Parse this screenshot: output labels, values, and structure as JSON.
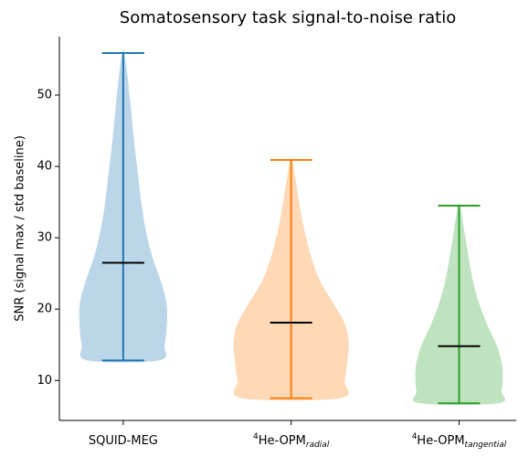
{
  "chart_data": {
    "type": "violin",
    "title": "Somatosensory task signal-to-noise ratio",
    "ylabel": "SNR (signal max / std baseline)",
    "categories": [
      {
        "text": "SQUID-MEG"
      },
      {
        "sup": "4",
        "text": "He-OPM",
        "sub": "radial"
      },
      {
        "sup": "4",
        "text": "He-OPM",
        "sub": "tangential"
      }
    ],
    "positions": [
      1,
      2,
      3
    ],
    "xlim": [
      0.62,
      3.34
    ],
    "ylim": [
      4.4,
      58.2
    ],
    "yticks": [
      10,
      20,
      30,
      40,
      50
    ],
    "median_color": "#000000",
    "series": [
      {
        "color": "#1f77b4",
        "min": 12.8,
        "max": 55.9,
        "median": 26.5,
        "kde_y": [
          12.8,
          15,
          18,
          21,
          24,
          27,
          30,
          34,
          38,
          42,
          46,
          50,
          53,
          55.9
        ],
        "kde_width": [
          0.62,
          0.72,
          0.76,
          0.75,
          0.65,
          0.52,
          0.42,
          0.33,
          0.27,
          0.21,
          0.16,
          0.11,
          0.07,
          0.02
        ]
      },
      {
        "color": "#ff7f0e",
        "min": 7.5,
        "max": 40.9,
        "median": 18.1,
        "kde_y": [
          7.5,
          10,
          13,
          15.5,
          18,
          21,
          24,
          27,
          30,
          33,
          36,
          38.5,
          40.9
        ],
        "kde_width": [
          0.85,
          0.93,
          0.98,
          1.0,
          0.93,
          0.72,
          0.5,
          0.36,
          0.26,
          0.18,
          0.12,
          0.07,
          0.02
        ]
      },
      {
        "color": "#2ca02c",
        "min": 6.8,
        "max": 34.5,
        "median": 14.8,
        "kde_y": [
          6.8,
          8.5,
          10.5,
          12.5,
          15,
          18,
          21,
          24,
          27,
          30,
          32.5,
          34.5
        ],
        "kde_width": [
          0.68,
          0.74,
          0.76,
          0.74,
          0.65,
          0.48,
          0.34,
          0.24,
          0.17,
          0.11,
          0.06,
          0.02
        ]
      }
    ]
  }
}
